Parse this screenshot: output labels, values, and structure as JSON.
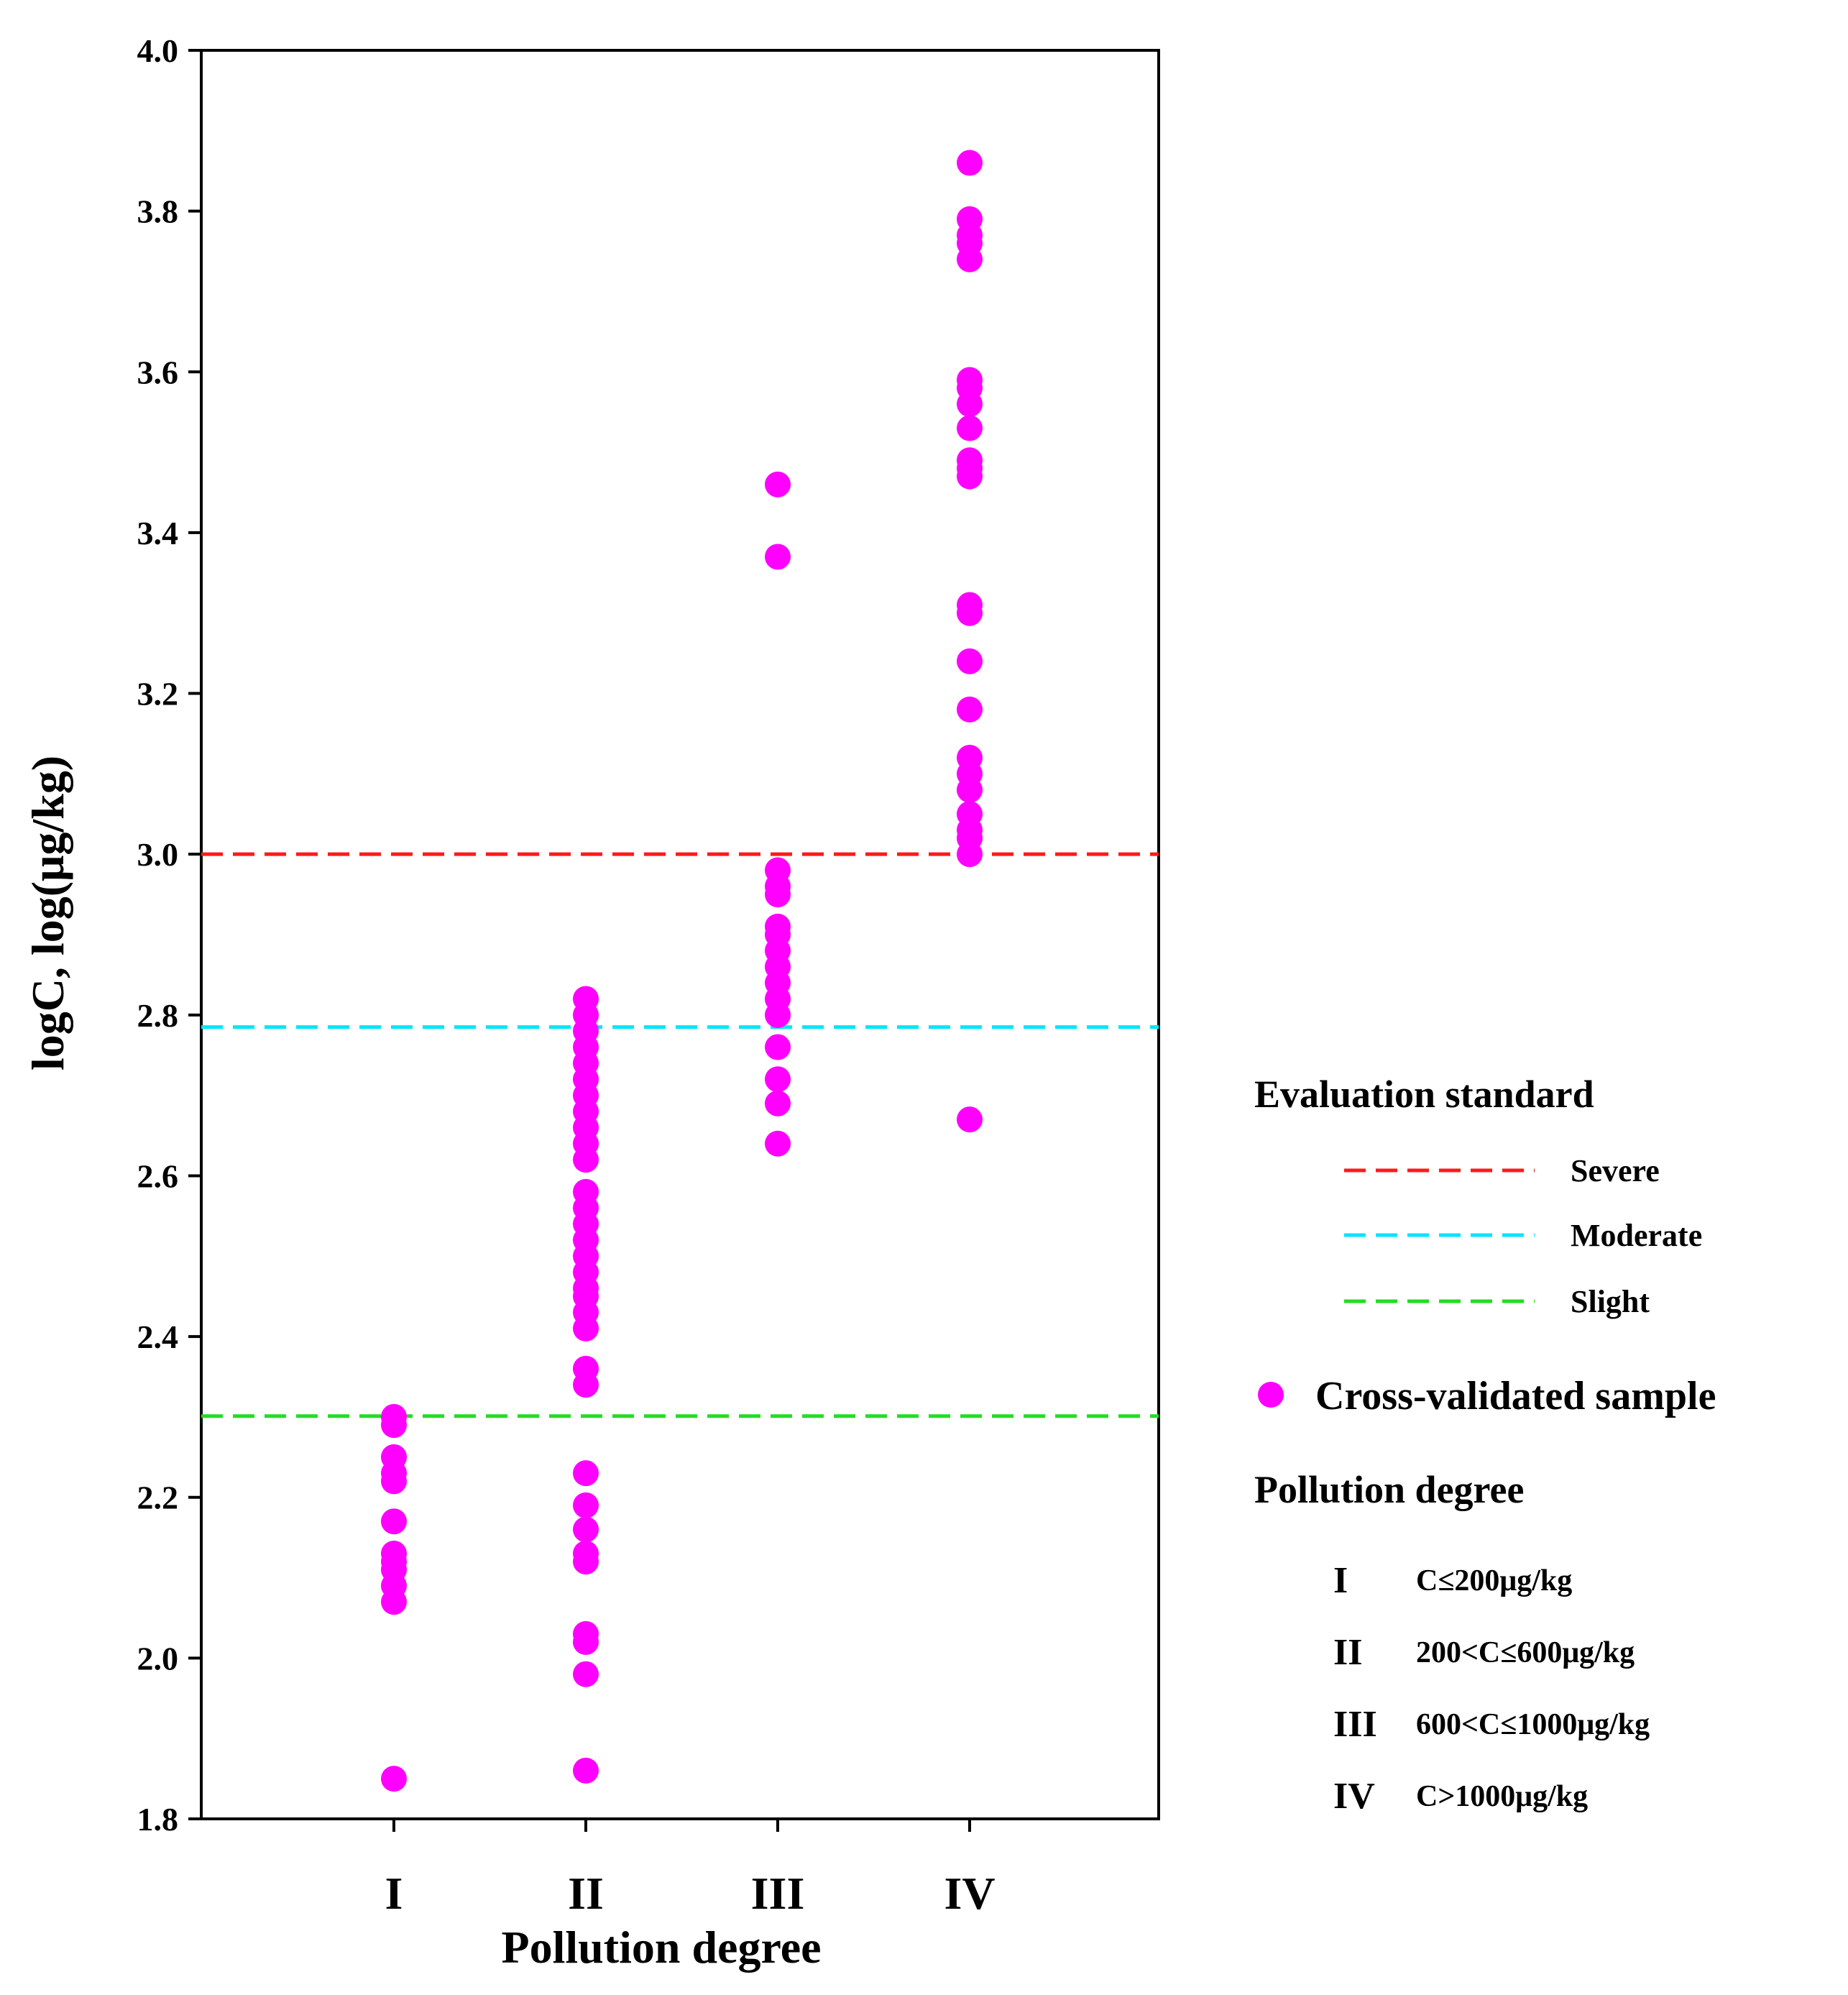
{
  "chart_data": {
    "type": "scatter",
    "xlabel": "Pollution degree",
    "ylabel": "logC, log(μg/kg)",
    "categories": [
      "I",
      "II",
      "III",
      "IV"
    ],
    "ylim": [
      1.8,
      4.0
    ],
    "yticks": [
      "1.8",
      "2.0",
      "2.2",
      "2.4",
      "2.6",
      "2.8",
      "3.0",
      "3.2",
      "3.4",
      "3.6",
      "3.8",
      "4.0"
    ],
    "series": [
      {
        "name": "Cross-validated  sample",
        "color": "#ff00ff",
        "points": {
          "I": [
            1.85,
            2.07,
            2.09,
            2.11,
            2.12,
            2.13,
            2.17,
            2.22,
            2.23,
            2.25,
            2.29,
            2.3
          ],
          "II": [
            1.86,
            1.98,
            2.02,
            2.03,
            2.12,
            2.13,
            2.16,
            2.19,
            2.23,
            2.34,
            2.36,
            2.41,
            2.43,
            2.45,
            2.46,
            2.48,
            2.5,
            2.52,
            2.54,
            2.56,
            2.58,
            2.62,
            2.64,
            2.66,
            2.68,
            2.7,
            2.72,
            2.74,
            2.76,
            2.78,
            2.8,
            2.82
          ],
          "III": [
            2.64,
            2.69,
            2.72,
            2.76,
            2.8,
            2.82,
            2.84,
            2.86,
            2.88,
            2.9,
            2.91,
            2.95,
            2.96,
            2.98,
            3.37,
            3.46
          ],
          "IV": [
            2.67,
            3.0,
            3.02,
            3.03,
            3.05,
            3.08,
            3.1,
            3.12,
            3.18,
            3.24,
            3.3,
            3.31,
            3.47,
            3.48,
            3.49,
            3.53,
            3.56,
            3.58,
            3.59,
            3.74,
            3.76,
            3.77,
            3.79,
            3.86
          ]
        }
      }
    ],
    "reference_lines": [
      {
        "name": "Severe",
        "value": 3.0,
        "color": "#ff1a1a"
      },
      {
        "name": "Moderate",
        "value": 2.785,
        "color": "#00e5ff"
      },
      {
        "name": "Slight",
        "value": 2.301,
        "color": "#22dd22"
      }
    ]
  },
  "legend": {
    "title": "Evaluation standard",
    "sample_label": "Cross-validated  sample",
    "pollution_title": "Pollution degree",
    "degrees": [
      {
        "roman": "I",
        "condition": "C≤200μg/kg"
      },
      {
        "roman": "II",
        "condition": "200<C≤600μg/kg"
      },
      {
        "roman": "III",
        "condition": "600<C≤1000μg/kg"
      },
      {
        "roman": "IV",
        "condition": "C>1000μg/kg"
      }
    ]
  }
}
